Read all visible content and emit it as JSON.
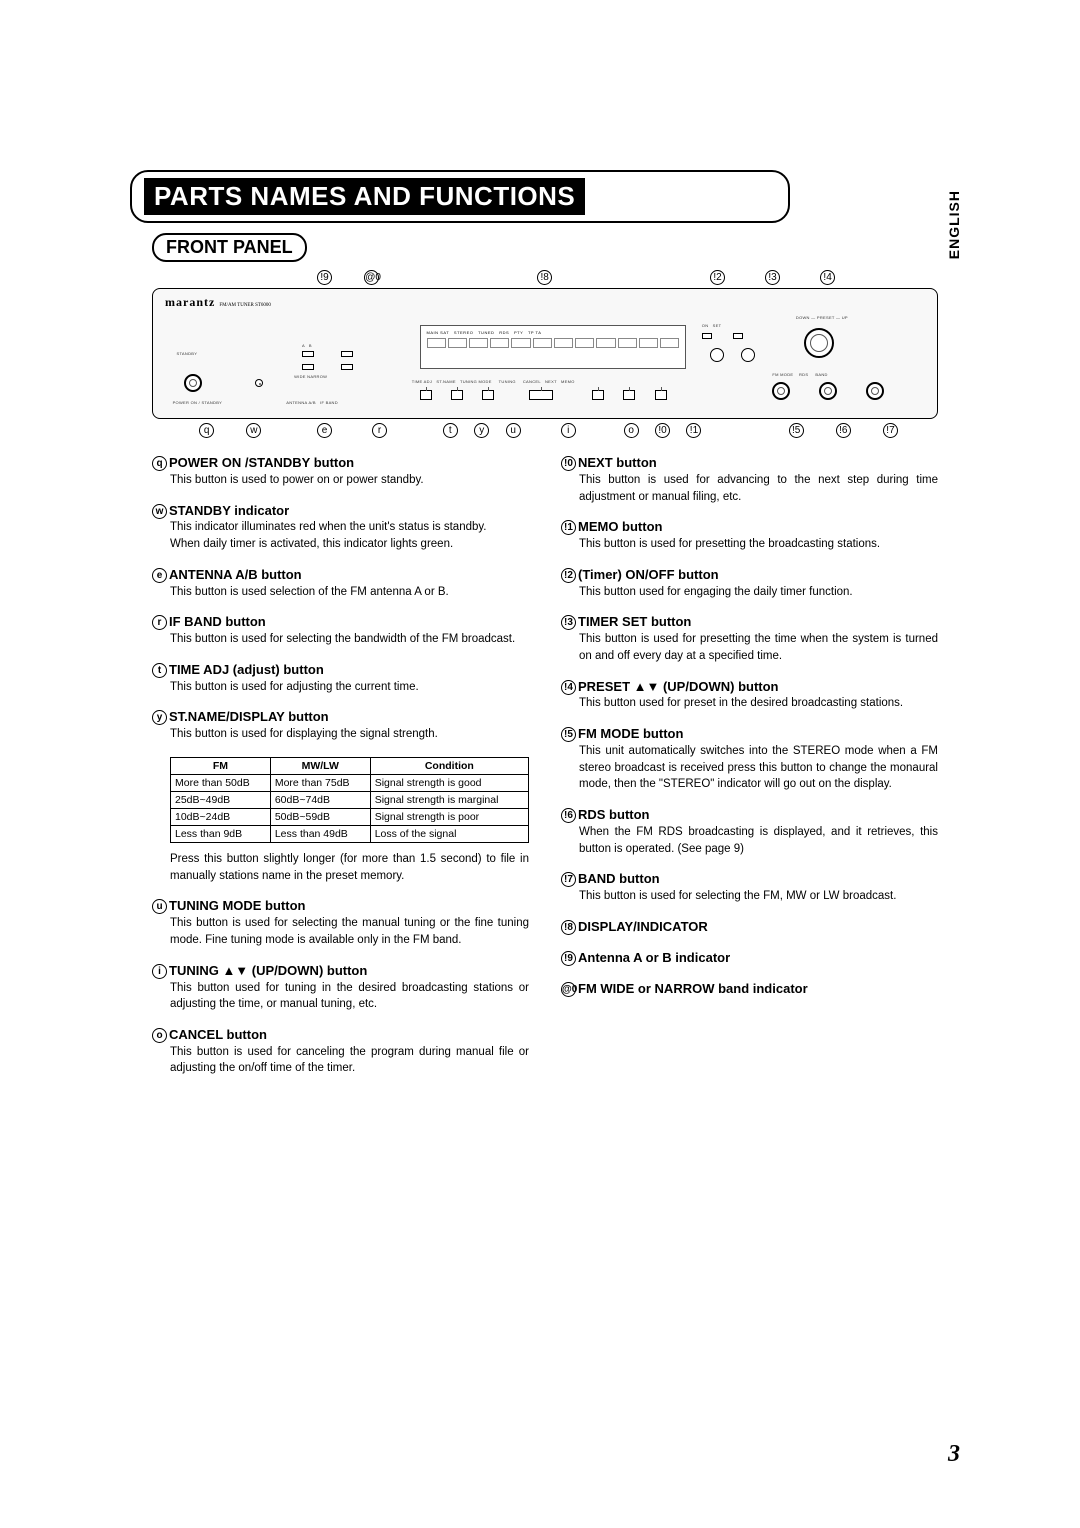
{
  "page_number": "3",
  "language_tab": "ENGLISH",
  "title": "PARTS NAMES AND FUNCTIONS",
  "subheading": "FRONT PANEL",
  "brand": "marantz",
  "brand_sub": "FM/AM TUNER ST6000",
  "top_callouts": [
    {
      "n": "!9",
      "left_pct": 21
    },
    {
      "n": "@0",
      "left_pct": 27
    },
    {
      "n": "!8",
      "left_pct": 49
    },
    {
      "n": "!2",
      "left_pct": 71
    },
    {
      "n": "!3",
      "left_pct": 78
    },
    {
      "n": "!4",
      "left_pct": 85
    }
  ],
  "bottom_callouts": [
    {
      "n": "q",
      "left_pct": 6
    },
    {
      "n": "w",
      "left_pct": 12
    },
    {
      "n": "e",
      "left_pct": 21
    },
    {
      "n": "r",
      "left_pct": 28
    },
    {
      "n": "t",
      "left_pct": 37
    },
    {
      "n": "y",
      "left_pct": 41
    },
    {
      "n": "u",
      "left_pct": 45
    },
    {
      "n": "i",
      "left_pct": 52
    },
    {
      "n": "o",
      "left_pct": 60
    },
    {
      "n": "!0",
      "left_pct": 64
    },
    {
      "n": "!1",
      "left_pct": 68
    },
    {
      "n": "!5",
      "left_pct": 81
    },
    {
      "n": "!6",
      "left_pct": 87
    },
    {
      "n": "!7",
      "left_pct": 93
    }
  ],
  "left_items": [
    {
      "num": "q",
      "title": "POWER ON /STANDBY button",
      "desc": "This button is used to power on or power standby."
    },
    {
      "num": "w",
      "title": "STANDBY indicator",
      "desc": "This indicator illuminates red when the unit's status is standby.\nWhen daily timer is activated, this indicator lights green."
    },
    {
      "num": "e",
      "title": "ANTENNA A/B button",
      "desc": "This button is used selection of the FM antenna A or B."
    },
    {
      "num": "r",
      "title": "IF BAND button",
      "desc": "This button is used for selecting the bandwidth of the FM broadcast."
    },
    {
      "num": "t",
      "title": "TIME ADJ (adjust) button",
      "desc": "This button is used for adjusting the current time."
    },
    {
      "num": "y",
      "title": "ST.NAME/DISPLAY button",
      "desc": "This button is used for displaying the signal strength."
    }
  ],
  "signal_table": {
    "headers": [
      "FM",
      "MW/LW",
      "Condition"
    ],
    "rows": [
      [
        "More than 50dB",
        "More than 75dB",
        "Signal strength is good"
      ],
      [
        "25dB~49dB",
        "60dB~74dB",
        "Signal strength is marginal"
      ],
      [
        "10dB~24dB",
        "50dB~59dB",
        "Signal strength is poor"
      ],
      [
        "Less than 9dB",
        "Less than 49dB",
        "Loss of the signal"
      ]
    ]
  },
  "after_table_note": "Press this button slightly longer (for more than 1.5 second) to file in manually stations name in the preset memory.",
  "left_items2": [
    {
      "num": "u",
      "title": "TUNING MODE button",
      "desc": "This button is used for selecting the manual tuning or the fine tuning mode. Fine tuning mode is available only in the FM band."
    },
    {
      "num": "i",
      "title": "TUNING ▲▼ (UP/DOWN) button",
      "desc": "This button used for tuning in the desired broadcasting stations or adjusting the time, or manual tuning, etc."
    },
    {
      "num": "o",
      "title": "CANCEL button",
      "desc": "This button is used for canceling the program during manual file or adjusting the on/off time of the timer."
    }
  ],
  "right_items": [
    {
      "num": "!0",
      "title": "NEXT button",
      "desc": "This button is used for advancing to the next step during time adjustment or manual filing, etc."
    },
    {
      "num": "!1",
      "title": "MEMO button",
      "desc": "This button is used for presetting the broadcasting stations."
    },
    {
      "num": "!2",
      "title": "(Timer) ON/OFF button",
      "desc": "This button used for engaging the daily timer function."
    },
    {
      "num": "!3",
      "title": "TIMER SET button",
      "desc": "This button is used for presetting the time when the system is turned on and off every day at a specified time."
    },
    {
      "num": "!4",
      "title": "PRESET ▲▼ (UP/DOWN) button",
      "desc": "This button used for preset in the desired broadcasting stations."
    },
    {
      "num": "!5",
      "title": "FM MODE  button",
      "desc": "This unit automatically switches into the STEREO mode when a FM stereo broadcast is received press this button to change the monaural mode, then the \"STEREO\" indicator will go out on the display."
    },
    {
      "num": "!6",
      "title": "RDS button",
      "desc": "When the FM RDS broadcasting is displayed, and it retrieves, this button is operated. (See page 9)"
    },
    {
      "num": "!7",
      "title": "BAND button",
      "desc": "This button is used for selecting the FM, MW or LW broadcast."
    },
    {
      "num": "!8",
      "title": "DISPLAY/INDICATOR",
      "desc": ""
    },
    {
      "num": "!9",
      "title": "Antenna A or B indicator",
      "desc": ""
    },
    {
      "num": "@0",
      "title": "FM WIDE or NARROW band indicator",
      "desc": ""
    }
  ]
}
